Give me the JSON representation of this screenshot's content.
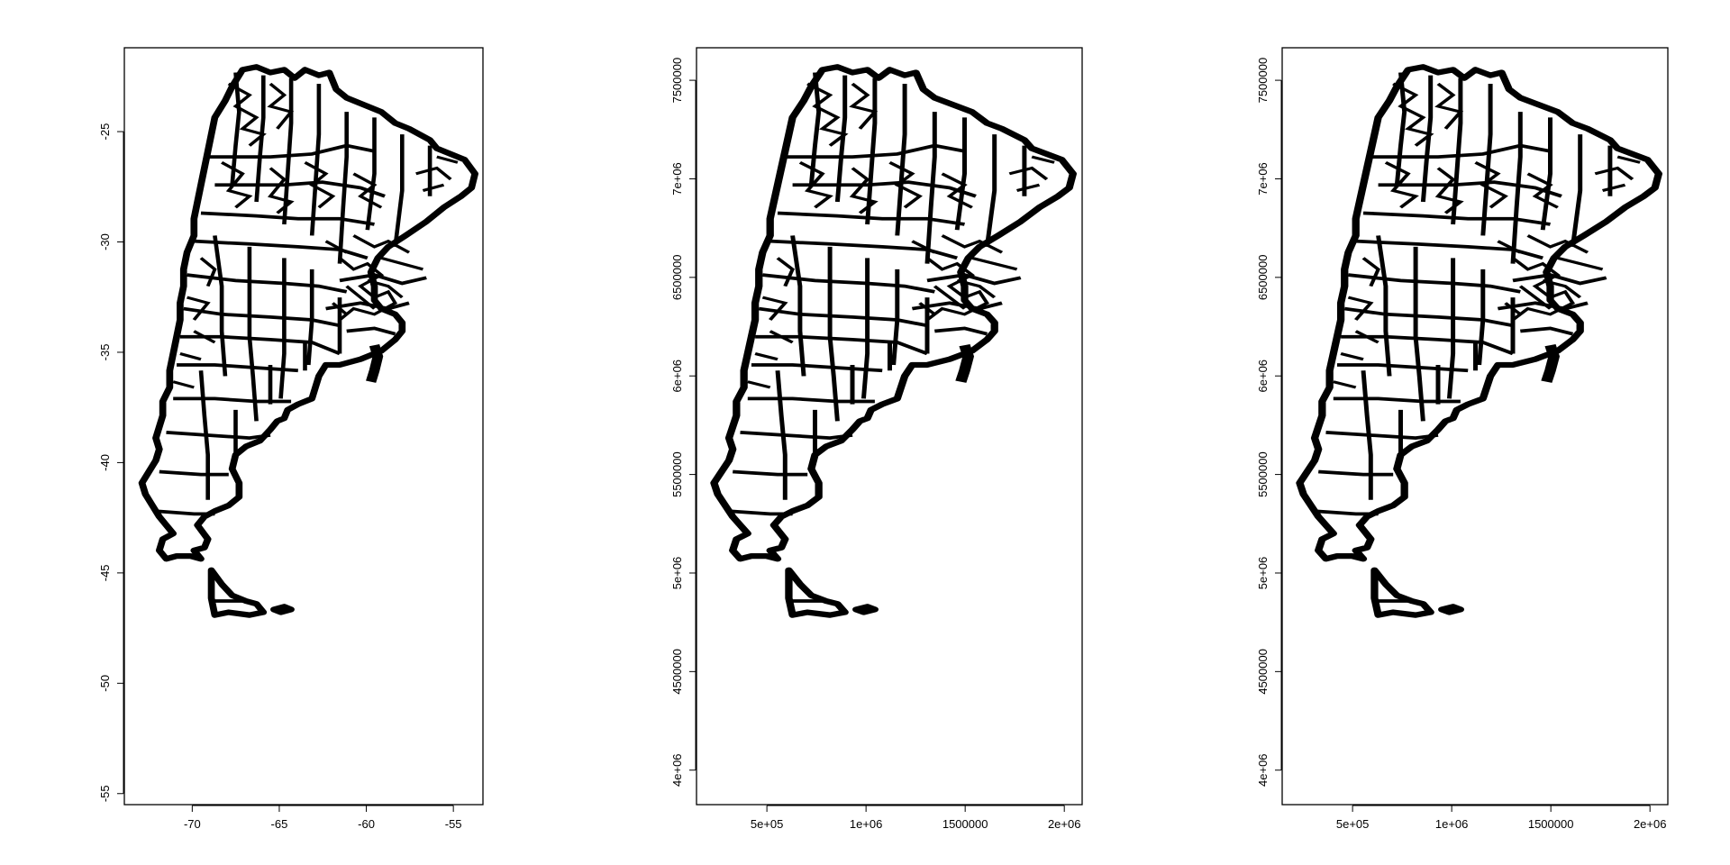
{
  "chart_data": [
    {
      "type": "map",
      "x_ticks": [
        "-70",
        "-65",
        "-60",
        "-55"
      ],
      "x_tick_values": [
        -70,
        -65,
        -60,
        -55
      ],
      "y_ticks": [
        "-25",
        "-30",
        "-35",
        "-40",
        "-45",
        "-50",
        "-55"
      ],
      "y_tick_values": [
        -25,
        -30,
        -35,
        -40,
        -45,
        -50,
        -55
      ],
      "xlim": [
        -73.9,
        -53.3
      ],
      "ylim": [
        -55.5,
        -21.2
      ],
      "grid": false,
      "legend": "none"
    },
    {
      "type": "map",
      "x_ticks": [
        "5e+05",
        "1e+06",
        "1500000",
        "2e+06"
      ],
      "x_tick_values": [
        500000,
        1000000,
        1500000,
        2000000
      ],
      "y_ticks": [
        "4e+06",
        "4500000",
        "5e+06",
        "5500000",
        "6e+06",
        "6500000",
        "7e+06",
        "7500000"
      ],
      "y_tick_values": [
        4000000,
        4500000,
        5000000,
        5500000,
        6000000,
        6500000,
        7000000,
        7500000
      ],
      "xlim": [
        145000,
        2090000
      ],
      "ylim": [
        3825000,
        7665000
      ],
      "grid": false,
      "legend": "none"
    },
    {
      "type": "map",
      "x_ticks": [
        "5e+05",
        "1e+06",
        "1500000",
        "2e+06"
      ],
      "x_tick_values": [
        500000,
        1000000,
        1500000,
        2000000
      ],
      "y_ticks": [
        "4e+06",
        "4500000",
        "5e+06",
        "5500000",
        "6e+06",
        "6500000",
        "7e+06",
        "7500000"
      ],
      "y_tick_values": [
        4000000,
        4500000,
        5000000,
        5500000,
        6000000,
        6500000,
        7000000,
        7500000
      ],
      "xlim": [
        145000,
        2090000
      ],
      "ylim": [
        3825000,
        7665000
      ],
      "grid": false,
      "legend": "none"
    }
  ]
}
